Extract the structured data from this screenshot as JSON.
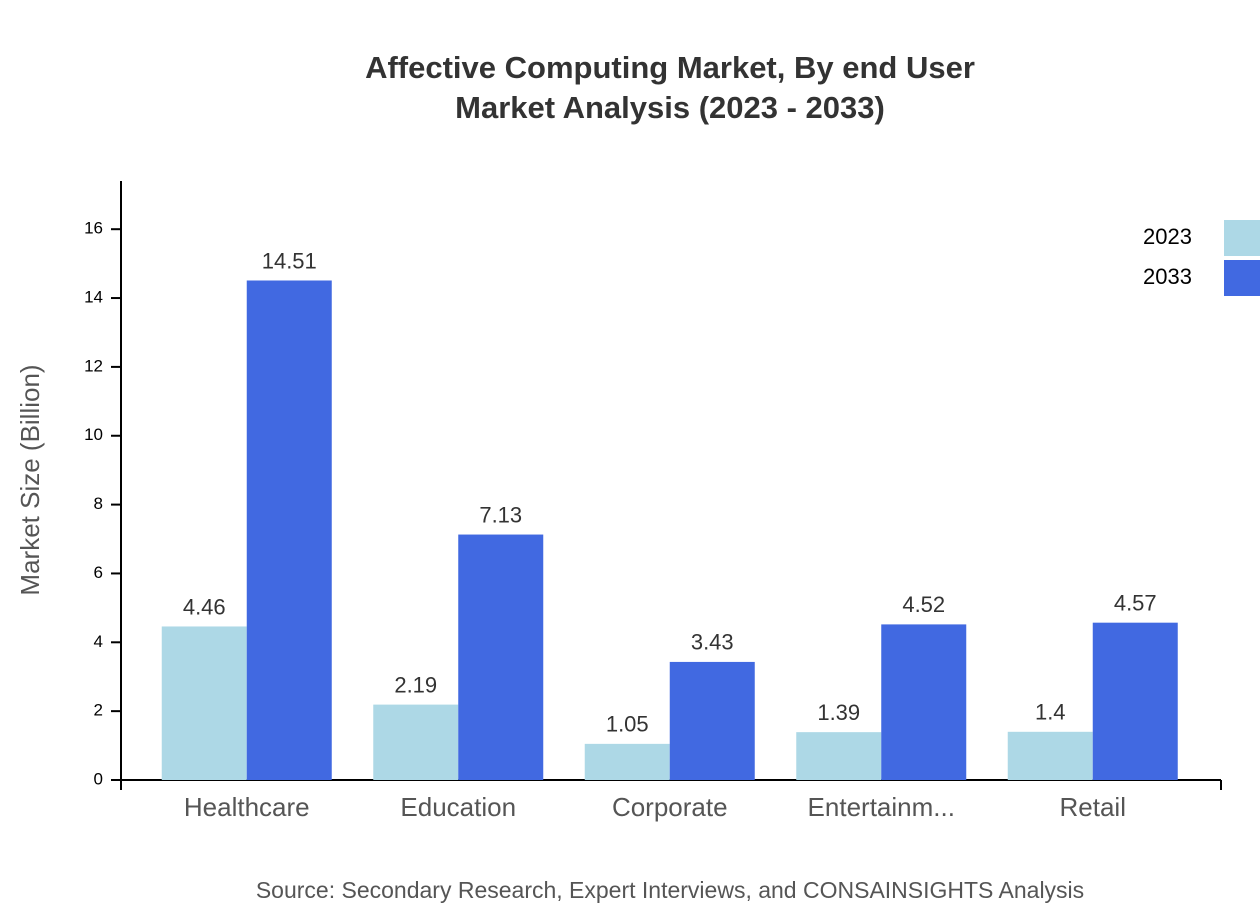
{
  "chart_data": {
    "type": "bar",
    "title": "Affective Computing Market, By end User",
    "subtitle": "Market Analysis (2023 - 2033)",
    "y_label": "Market Size (Billion)",
    "source": "Source: Secondary Research, Expert Interviews, and CONSAINSIGHTS Analysis",
    "categories": [
      "Healthcare",
      "Education",
      "Corporate",
      "Entertainm...",
      "Retail"
    ],
    "series": [
      {
        "name": "2023",
        "color": "#add8e6",
        "values": [
          4.46,
          2.19,
          1.05,
          1.39,
          1.4
        ]
      },
      {
        "name": "2033",
        "color": "#4169e1",
        "values": [
          14.51,
          7.13,
          3.43,
          4.52,
          4.57
        ]
      }
    ],
    "ylim": [
      0,
      17.4
    ],
    "yticks": [
      0,
      2,
      4,
      6,
      8,
      10,
      12,
      14,
      16
    ],
    "grid": false,
    "legend": "top-right"
  }
}
